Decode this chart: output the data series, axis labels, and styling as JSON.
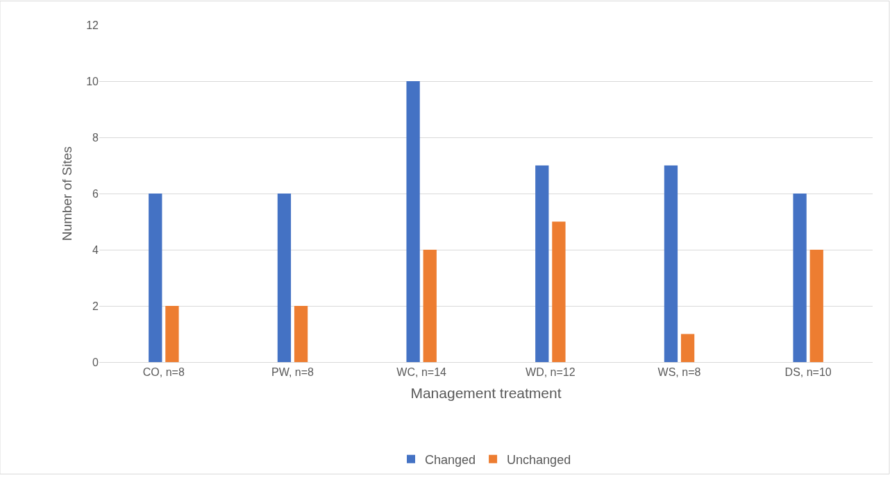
{
  "chart_data": {
    "type": "bar",
    "xlabel": "Management treatment",
    "ylabel": "Number of Sites",
    "categories": [
      "CO, n=8",
      "PW, n=8",
      "WC, n=14",
      "WD, n=12",
      "WS, n=8",
      "DS, n=10"
    ],
    "series": [
      {
        "name": "Changed",
        "color": "#4472c4",
        "values": [
          6,
          6,
          10,
          7,
          7,
          6
        ]
      },
      {
        "name": "Unchanged",
        "color": "#ed7d31",
        "values": [
          2,
          2,
          4,
          5,
          1,
          4
        ]
      }
    ],
    "ylim": [
      0,
      12
    ],
    "yticks": [
      0,
      2,
      4,
      6,
      8,
      10,
      12
    ],
    "grid": "y",
    "legend": "bottom"
  }
}
